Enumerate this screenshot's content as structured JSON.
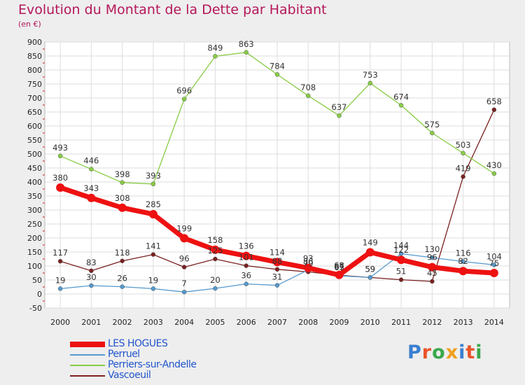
{
  "header": {
    "title": "Evolution du Montant de la Dette par Habitant",
    "unit": "(en €)"
  },
  "logo": {
    "text": "Proxiti",
    "letter_colors": [
      "#3a7fd0",
      "#e8542a",
      "#3aa84a",
      "#f0a020",
      "#3a7fd0",
      "#e8542a",
      "#3aa84a"
    ]
  },
  "chart_data": {
    "type": "line",
    "x": [
      "2000",
      "2001",
      "2002",
      "2003",
      "2004",
      "2005",
      "2006",
      "2007",
      "2008",
      "2009",
      "2010",
      "2011",
      "2012",
      "2013",
      "2014"
    ],
    "ylim": [
      -50,
      900
    ],
    "yticks": [
      "900",
      "850",
      "800",
      "750",
      "700",
      "650",
      "600",
      "550",
      "500",
      "450",
      "400",
      "350",
      "300",
      "250",
      "200",
      "150",
      "100",
      "50",
      "0",
      "-50"
    ],
    "grid": true,
    "legend_position": "bottom-left",
    "series": [
      {
        "name": "LES HOGUES",
        "color": "#ee1111",
        "values": [
          380,
          343,
          308,
          285,
          199,
          158,
          136,
          114,
          93,
          68,
          149,
          122,
          96,
          82,
          75
        ],
        "labels": [
          "380",
          "343",
          "308",
          "285",
          "199",
          "158",
          "136",
          "114",
          "93",
          "68",
          "149",
          "122",
          "96",
          "82",
          "75"
        ]
      },
      {
        "name": "Perruel",
        "color": "#5599cc",
        "values": [
          19,
          30,
          26,
          19,
          7,
          20,
          36,
          31,
          86,
          65,
          59,
          144,
          130,
          116,
          104
        ],
        "labels": [
          "19",
          "30",
          "26",
          "19",
          "7",
          "20",
          "36",
          "31",
          "86",
          "65",
          "59",
          "144",
          "130",
          "116",
          "104"
        ]
      },
      {
        "name": "Perriers-sur-Andelle",
        "color": "#88cc44",
        "values": [
          493,
          446,
          398,
          393,
          696,
          849,
          863,
          784,
          708,
          637,
          753,
          674,
          575,
          503,
          430
        ],
        "labels": [
          "493",
          "446",
          "398",
          "393",
          "696",
          "849",
          "863",
          "784",
          "708",
          "637",
          "753",
          "674",
          "575",
          "503",
          "430"
        ]
      },
      {
        "name": "Vascoeuil",
        "color": "#7a2020",
        "values": [
          117,
          83,
          118,
          141,
          96,
          125,
          101,
          88,
          79,
          67,
          59,
          51,
          45,
          419,
          658
        ],
        "labels": [
          "117",
          "83",
          "118",
          "141",
          "96",
          "125",
          "101",
          "88",
          "79",
          "67",
          "59",
          "51",
          "45",
          "419",
          "658"
        ]
      }
    ]
  }
}
